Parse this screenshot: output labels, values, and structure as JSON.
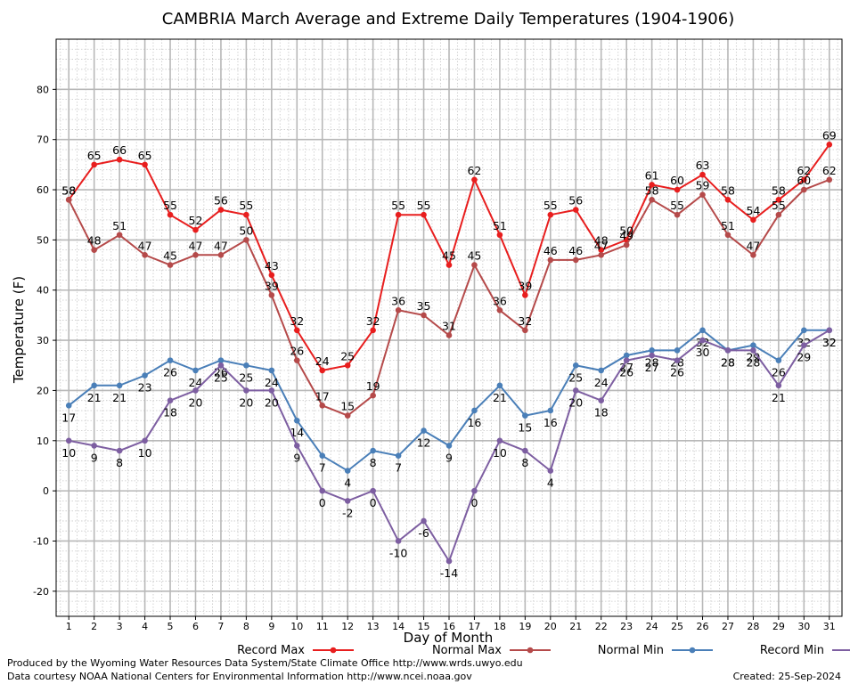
{
  "chart_data": {
    "type": "line",
    "title": "CAMBRIA March Average and Extreme Daily Temperatures (1904-1906)",
    "xlabel": "Day of Month",
    "ylabel": "Temperature (F)",
    "ylim": [
      -25,
      90
    ],
    "xlim": [
      0.5,
      31.5
    ],
    "yticks": [
      -20,
      -10,
      0,
      10,
      20,
      30,
      40,
      50,
      60,
      70,
      80
    ],
    "grid": true,
    "legend_placement": "bottom",
    "x": [
      1,
      2,
      3,
      4,
      5,
      6,
      7,
      8,
      9,
      10,
      11,
      12,
      13,
      14,
      15,
      16,
      17,
      18,
      19,
      20,
      21,
      22,
      23,
      24,
      25,
      26,
      27,
      28,
      29,
      30,
      31
    ],
    "series": [
      {
        "name": "Record Max",
        "color": "#e81e1e",
        "values": [
          58,
          65,
          66,
          65,
          55,
          52,
          56,
          55,
          43,
          32,
          24,
          25,
          32,
          55,
          55,
          45,
          62,
          51,
          39,
          55,
          56,
          48,
          50,
          61,
          60,
          63,
          58,
          54,
          58,
          62,
          69
        ]
      },
      {
        "name": "Normal Max",
        "color": "#b54a4a",
        "values": [
          58,
          48,
          51,
          47,
          45,
          47,
          47,
          50,
          39,
          26,
          17,
          15,
          19,
          36,
          35,
          31,
          45,
          36,
          32,
          46,
          46,
          47,
          49,
          58,
          55,
          59,
          51,
          47,
          55,
          60,
          62
        ]
      },
      {
        "name": "Normal Min",
        "color": "#4a7fb8",
        "values": [
          17,
          21,
          21,
          23,
          26,
          24,
          26,
          25,
          24,
          14,
          7,
          4,
          8,
          7,
          12,
          9,
          16,
          21,
          15,
          16,
          25,
          24,
          27,
          28,
          28,
          32,
          28,
          29,
          26,
          32,
          32
        ]
      },
      {
        "name": "Record Min",
        "color": "#7d5ea1",
        "values": [
          10,
          9,
          8,
          10,
          18,
          20,
          25,
          20,
          20,
          9,
          0,
          -2,
          0,
          -10,
          -6,
          -14,
          0,
          10,
          8,
          4,
          20,
          18,
          26,
          27,
          26,
          30,
          28,
          28,
          21,
          29,
          32
        ]
      }
    ]
  },
  "footer": {
    "produced_by": "Produced by the Wyoming Water Resources Data System/State Climate Office http://www.wrds.uwyo.edu",
    "courtesy": "Data courtesy NOAA National Centers for Environmental Information http://www.ncei.noaa.gov",
    "created": "Created:  25-Sep-2024"
  }
}
